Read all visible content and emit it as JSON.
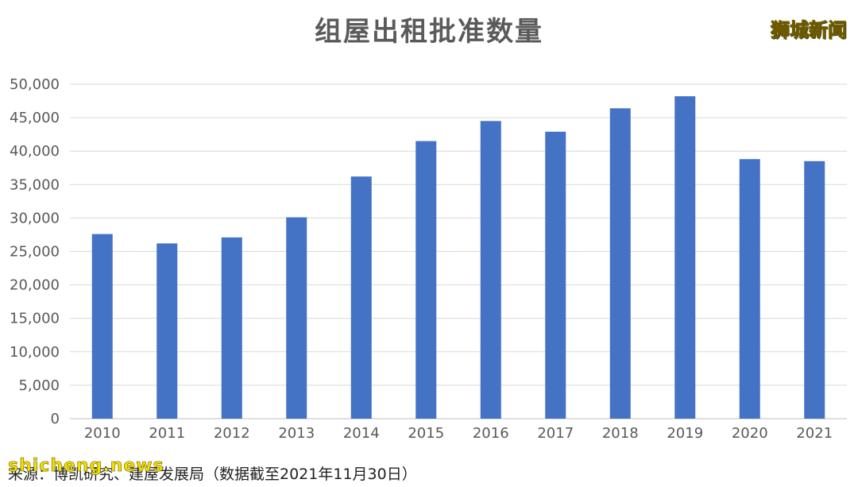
{
  "title": "组屋出租批准数量",
  "watermark": "狮城新闻",
  "source": "来源：博凯研究、建屋发展局（数据截至2021年11月30日）",
  "site_mark": "shicheng.news",
  "colors": {
    "bar": "#4472c4",
    "grid": "#d9d9d9",
    "axis": "#bfbfbf",
    "title": "#5a5a5a"
  },
  "chart_data": {
    "type": "bar",
    "title": "组屋出租批准数量",
    "xlabel": "",
    "ylabel": "",
    "categories": [
      "2010",
      "2011",
      "2012",
      "2013",
      "2014",
      "2015",
      "2016",
      "2017",
      "2018",
      "2019",
      "2020",
      "2021"
    ],
    "values": [
      27600,
      26200,
      27100,
      30100,
      36200,
      41500,
      44500,
      42900,
      46400,
      48200,
      38800,
      38500
    ],
    "ylim": [
      0,
      50000
    ],
    "yticks": [
      "0",
      "5,000",
      "10,000",
      "15,000",
      "20,000",
      "25,000",
      "30,000",
      "35,000",
      "40,000",
      "45,000",
      "50,000"
    ],
    "grid": true,
    "legend": "none"
  }
}
